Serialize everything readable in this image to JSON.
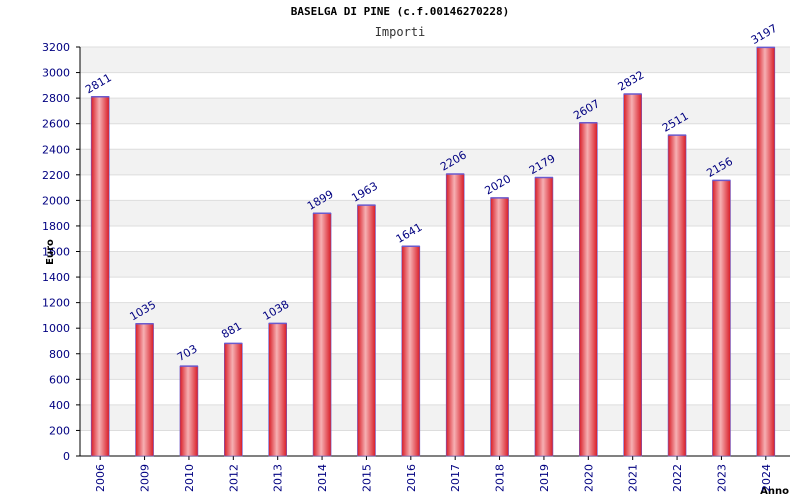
{
  "chart_data": {
    "type": "bar",
    "title": "BASELGA DI PINE (c.f.00146270228)",
    "subtitle": "Importi",
    "xlabel": "Anno",
    "ylabel": "Euro",
    "categories": [
      "2006",
      "2009",
      "2010",
      "2012",
      "2013",
      "2014",
      "2015",
      "2016",
      "2017",
      "2018",
      "2019",
      "2020",
      "2021",
      "2022",
      "2023",
      "2024"
    ],
    "values": [
      2811,
      1035,
      703,
      881,
      1038,
      1899,
      1963,
      1641,
      2206,
      2020,
      2179,
      2607,
      2832,
      2511,
      2156,
      3197
    ],
    "ylim": [
      0,
      3200
    ],
    "yticks": [
      0,
      200,
      400,
      600,
      800,
      1000,
      1200,
      1400,
      1600,
      1800,
      2000,
      2200,
      2400,
      2600,
      2800,
      3000,
      3200
    ],
    "grid": true,
    "colors": {
      "bar": "#e0202a",
      "bar_light": "#f4a3a6",
      "bar_edge": "#6a5acd",
      "tick": "#000080",
      "band": "#f2f2f2",
      "grid": "#dddddd"
    }
  }
}
